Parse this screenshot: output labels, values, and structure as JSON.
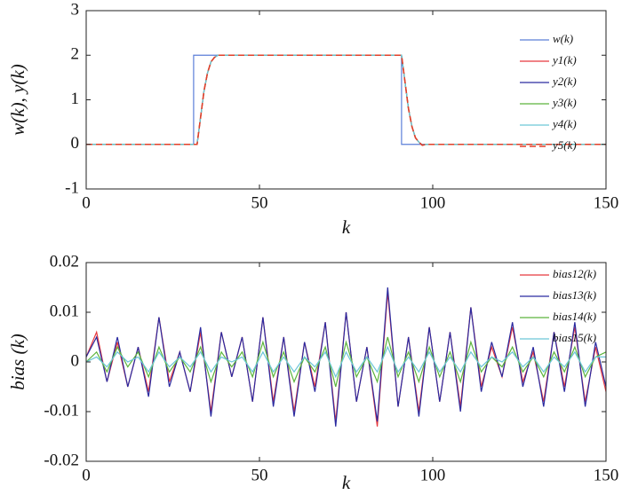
{
  "chart_data": [
    {
      "type": "line",
      "xlabel": "k",
      "ylabel": "w(k), y(k)",
      "xlim": [
        0,
        150
      ],
      "ylim": [
        -1,
        3
      ],
      "xticks": [
        0,
        50,
        100,
        150
      ],
      "yticks": [
        -1,
        0,
        1,
        2,
        3
      ],
      "legend": "upper right",
      "series": [
        {
          "name": "w(k)",
          "color": "#5b7fd8",
          "x": [
            0,
            31,
            31,
            91,
            91,
            150
          ],
          "values": [
            0,
            0,
            2,
            2,
            0,
            0
          ]
        },
        {
          "name": "y1(k)",
          "color": "#e8383d",
          "x": [
            0,
            32,
            33,
            34,
            35,
            36,
            37,
            38,
            90,
            91,
            92,
            93,
            94,
            95,
            96,
            97,
            98,
            150
          ],
          "values": [
            0,
            0,
            0.6,
            1.2,
            1.6,
            1.85,
            1.95,
            2,
            2,
            2,
            1.4,
            0.8,
            0.4,
            0.15,
            0.05,
            -0.02,
            0,
            0
          ]
        },
        {
          "name": "y2(k)",
          "color": "#2a2aa0",
          "x": [
            0,
            32,
            33,
            34,
            35,
            36,
            37,
            38,
            90,
            91,
            92,
            93,
            94,
            95,
            96,
            97,
            98,
            150
          ],
          "values": [
            0,
            0,
            0.6,
            1.2,
            1.6,
            1.85,
            1.95,
            2,
            2,
            2,
            1.4,
            0.8,
            0.4,
            0.15,
            0.05,
            -0.02,
            0,
            0
          ]
        },
        {
          "name": "y3(k)",
          "color": "#5cb43c",
          "x": [
            0,
            32,
            33,
            34,
            35,
            36,
            37,
            38,
            90,
            91,
            92,
            93,
            94,
            95,
            96,
            97,
            98,
            150
          ],
          "values": [
            0,
            0,
            0.6,
            1.2,
            1.6,
            1.85,
            1.95,
            2,
            2,
            2,
            1.4,
            0.8,
            0.4,
            0.15,
            0.05,
            -0.02,
            0,
            0
          ]
        },
        {
          "name": "y4(k)",
          "color": "#6cc6d8",
          "x": [
            0,
            32,
            33,
            34,
            35,
            36,
            37,
            38,
            90,
            91,
            92,
            93,
            94,
            95,
            96,
            97,
            98,
            150
          ],
          "values": [
            0,
            0,
            0.6,
            1.2,
            1.6,
            1.85,
            1.95,
            2,
            2,
            2,
            1.4,
            0.8,
            0.4,
            0.15,
            0.05,
            -0.02,
            0,
            0
          ]
        },
        {
          "name": "y5(k)",
          "color": "#e0402a",
          "dashed": true,
          "x": [
            0,
            32,
            33,
            34,
            35,
            36,
            37,
            38,
            90,
            91,
            92,
            93,
            94,
            95,
            96,
            97,
            98,
            150
          ],
          "values": [
            0,
            0,
            0.6,
            1.2,
            1.6,
            1.85,
            1.95,
            2,
            2,
            2,
            1.4,
            0.8,
            0.4,
            0.15,
            0.05,
            -0.02,
            0,
            0
          ]
        }
      ]
    },
    {
      "type": "line",
      "xlabel": "k",
      "ylabel": "bias (k)",
      "xlim": [
        0,
        150
      ],
      "ylim": [
        -0.02,
        0.02
      ],
      "xticks": [
        0,
        50,
        100,
        150
      ],
      "yticks": [
        -0.02,
        -0.01,
        0,
        0.01,
        0.02
      ],
      "legend": "upper right",
      "x": [
        0,
        3,
        6,
        9,
        12,
        15,
        18,
        21,
        24,
        27,
        30,
        33,
        36,
        39,
        42,
        45,
        48,
        51,
        54,
        57,
        60,
        63,
        66,
        69,
        72,
        75,
        78,
        81,
        84,
        87,
        90,
        93,
        96,
        99,
        102,
        105,
        108,
        111,
        114,
        117,
        120,
        123,
        126,
        129,
        132,
        135,
        138,
        141,
        144,
        147,
        150
      ],
      "series": [
        {
          "name": "bias12(k)",
          "color": "#e8383d",
          "values": [
            0.001,
            0.006,
            -0.004,
            0.004,
            -0.005,
            0.003,
            -0.006,
            0.009,
            -0.004,
            0.002,
            -0.006,
            0.006,
            -0.01,
            0.006,
            -0.003,
            0.005,
            -0.008,
            0.009,
            -0.008,
            0.005,
            -0.01,
            0.004,
            -0.005,
            0.008,
            -0.012,
            0.01,
            -0.008,
            0.003,
            -0.013,
            0.014,
            -0.009,
            0.005,
            -0.01,
            0.007,
            -0.008,
            0.006,
            -0.009,
            0.011,
            -0.005,
            0.003,
            -0.003,
            0.007,
            -0.004,
            0.002,
            -0.008,
            0.006,
            -0.005,
            0.007,
            -0.008,
            0.003,
            -0.006
          ]
        },
        {
          "name": "bias13(k)",
          "color": "#2a2aa0",
          "values": [
            0.001,
            0.005,
            -0.004,
            0.005,
            -0.005,
            0.003,
            -0.007,
            0.009,
            -0.005,
            0.002,
            -0.006,
            0.007,
            -0.011,
            0.006,
            -0.003,
            0.005,
            -0.008,
            0.009,
            -0.009,
            0.005,
            -0.011,
            0.004,
            -0.006,
            0.008,
            -0.013,
            0.01,
            -0.008,
            0.003,
            -0.012,
            0.015,
            -0.009,
            0.005,
            -0.011,
            0.007,
            -0.008,
            0.006,
            -0.01,
            0.011,
            -0.006,
            0.004,
            -0.003,
            0.008,
            -0.005,
            0.003,
            -0.009,
            0.006,
            -0.006,
            0.008,
            -0.009,
            0.004,
            -0.005
          ]
        },
        {
          "name": "bias14(k)",
          "color": "#5cb43c",
          "values": [
            0,
            0.002,
            -0.002,
            0.003,
            -0.001,
            0.002,
            -0.003,
            0.003,
            -0.002,
            0.001,
            -0.002,
            0.003,
            -0.004,
            0.002,
            -0.001,
            0.002,
            -0.003,
            0.004,
            -0.003,
            0.002,
            -0.004,
            0.001,
            -0.002,
            0.003,
            -0.005,
            0.004,
            -0.003,
            0.001,
            -0.004,
            0.005,
            -0.003,
            0.002,
            -0.004,
            0.003,
            -0.003,
            0.002,
            -0.004,
            0.004,
            -0.002,
            0.001,
            -0.001,
            0.003,
            -0.002,
            0.001,
            -0.003,
            0.002,
            -0.002,
            0.003,
            -0.003,
            0.001,
            0.002
          ]
        },
        {
          "name": "bias15(k)",
          "color": "#6cc6d8",
          "values": [
            0,
            0.001,
            -0.001,
            0.002,
            0,
            0.001,
            -0.002,
            0.002,
            -0.001,
            0.001,
            -0.001,
            0.002,
            -0.002,
            0.001,
            0,
            0.001,
            -0.002,
            0.002,
            -0.002,
            0.001,
            -0.002,
            0.001,
            -0.001,
            0.002,
            -0.003,
            0.002,
            -0.002,
            0.001,
            -0.002,
            0.003,
            -0.002,
            0.001,
            -0.002,
            0.002,
            -0.002,
            0.001,
            -0.002,
            0.002,
            -0.001,
            0.001,
            0,
            0.002,
            -0.001,
            0.001,
            -0.002,
            0.001,
            -0.001,
            0.002,
            -0.002,
            0.001,
            0.001
          ]
        }
      ]
    }
  ]
}
